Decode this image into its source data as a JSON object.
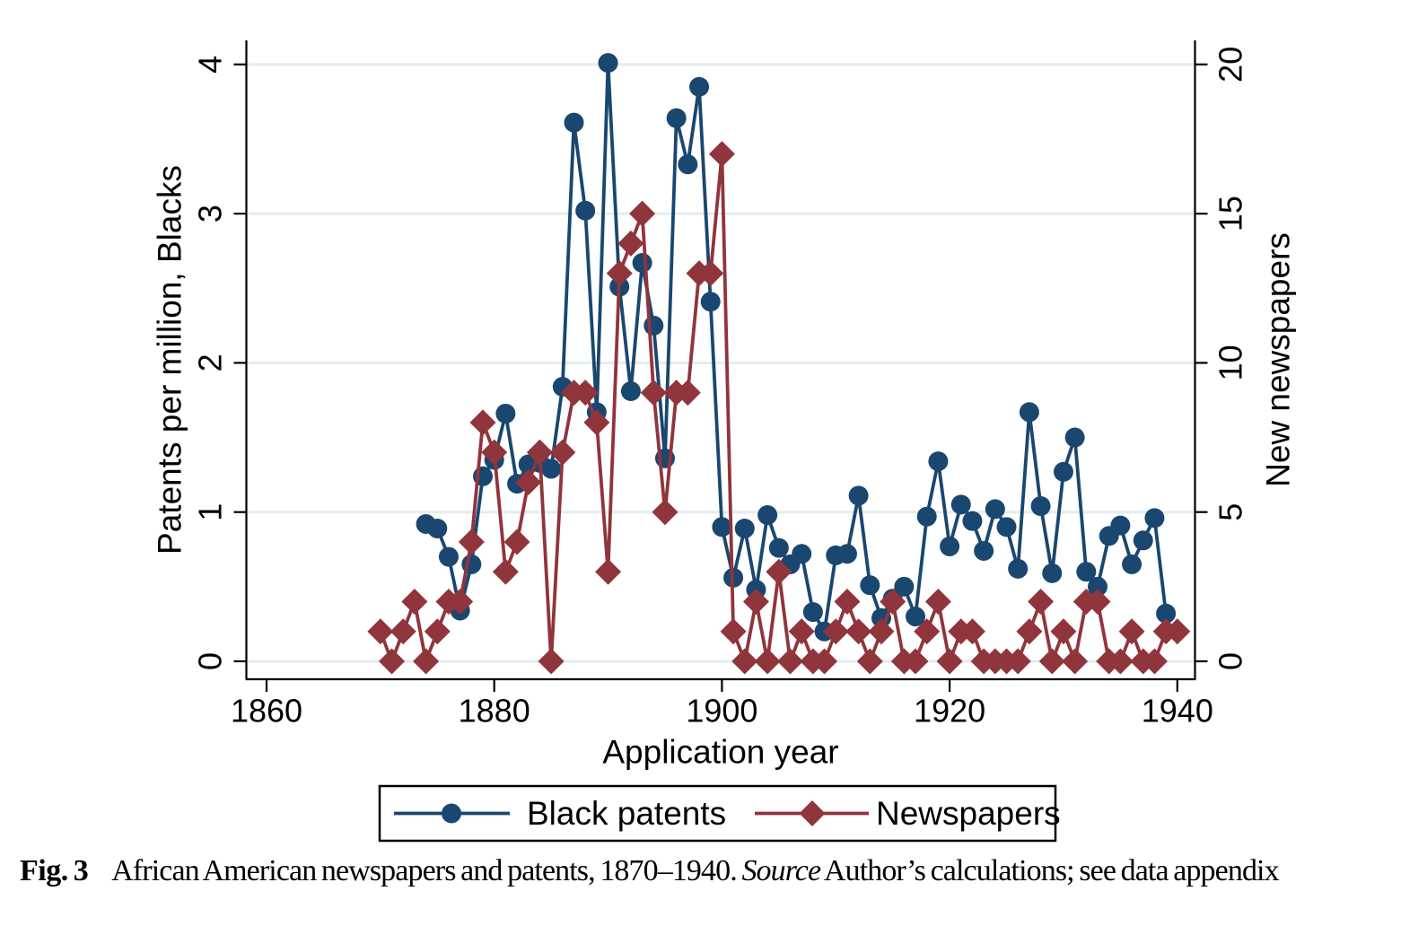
{
  "caption": {
    "fig_label": "Fig. 3",
    "title": "African American newspapers and patents, 1870–1940.",
    "source_label": "Source",
    "source_text": "Author’s calculations; see data appendix"
  },
  "colors": {
    "patents_line": "#1a476f",
    "newspapers_line": "#90353b",
    "gridline": "#e2edef",
    "axis": "#000000",
    "background": "#ffffff",
    "legend_border": "#000000"
  },
  "chart_data": {
    "type": "line",
    "title": "",
    "xlabel": "Application year",
    "ylabel_left": "Patents per million, Blacks",
    "ylabel_right": "New newspapers",
    "x_range": [
      1860,
      1940
    ],
    "x_ticks": [
      1860,
      1880,
      1900,
      1920,
      1940
    ],
    "y_left_range": [
      0,
      4
    ],
    "y_left_ticks": [
      0,
      1,
      2,
      3,
      4
    ],
    "y_right_range": [
      0,
      20
    ],
    "y_right_ticks": [
      0,
      5,
      10,
      15,
      20
    ],
    "grid": "horizontal",
    "legend_position": "bottom",
    "series": [
      {
        "name": "Black patents",
        "axis": "left",
        "marker": "circle",
        "color": "#1a476f",
        "x": [
          1874,
          1875,
          1876,
          1877,
          1878,
          1879,
          1880,
          1881,
          1882,
          1883,
          1884,
          1885,
          1886,
          1887,
          1888,
          1889,
          1890,
          1891,
          1892,
          1893,
          1894,
          1895,
          1896,
          1897,
          1898,
          1899,
          1900,
          1901,
          1902,
          1903,
          1904,
          1905,
          1906,
          1907,
          1908,
          1909,
          1910,
          1911,
          1912,
          1913,
          1914,
          1915,
          1916,
          1917,
          1918,
          1919,
          1920,
          1921,
          1922,
          1923,
          1924,
          1925,
          1926,
          1927,
          1928,
          1929,
          1930,
          1931,
          1932,
          1933,
          1934,
          1935,
          1936,
          1937,
          1938,
          1939
        ],
        "values": [
          0.92,
          0.89,
          0.7,
          0.34,
          0.65,
          1.24,
          1.35,
          1.66,
          1.19,
          1.32,
          1.33,
          1.29,
          1.84,
          3.61,
          3.02,
          1.67,
          4.01,
          2.51,
          1.81,
          2.67,
          2.25,
          1.36,
          3.64,
          3.33,
          3.85,
          2.41,
          0.9,
          0.56,
          0.89,
          0.48,
          0.98,
          0.76,
          0.65,
          0.72,
          0.33,
          0.2,
          0.71,
          0.72,
          1.11,
          0.51,
          0.29,
          0.42,
          0.5,
          0.3,
          0.97,
          1.34,
          0.77,
          1.05,
          0.94,
          0.74,
          1.02,
          0.9,
          0.62,
          1.67,
          1.04,
          0.59,
          1.27,
          1.5,
          0.6,
          0.5,
          0.84,
          0.91,
          0.65,
          0.81,
          0.96,
          0.32
        ]
      },
      {
        "name": "Newspapers",
        "axis": "right",
        "marker": "diamond",
        "color": "#90353b",
        "x": [
          1870,
          1871,
          1872,
          1873,
          1874,
          1875,
          1876,
          1877,
          1878,
          1879,
          1880,
          1881,
          1882,
          1883,
          1884,
          1885,
          1886,
          1887,
          1888,
          1889,
          1890,
          1891,
          1892,
          1893,
          1894,
          1895,
          1896,
          1897,
          1898,
          1899,
          1900,
          1901,
          1902,
          1903,
          1904,
          1905,
          1906,
          1907,
          1908,
          1909,
          1910,
          1911,
          1912,
          1913,
          1914,
          1915,
          1916,
          1917,
          1918,
          1919,
          1920,
          1921,
          1922,
          1923,
          1924,
          1925,
          1926,
          1927,
          1928,
          1929,
          1930,
          1931,
          1932,
          1933,
          1934,
          1935,
          1936,
          1937,
          1938,
          1939,
          1940
        ],
        "values": [
          1,
          0,
          1,
          2,
          0,
          1,
          2,
          2,
          4,
          8,
          7,
          3,
          4,
          6,
          7,
          0,
          7,
          9,
          9,
          8,
          3,
          13,
          14,
          15,
          9,
          5,
          9,
          9,
          13,
          13,
          17,
          1,
          0,
          2,
          0,
          3,
          0,
          1,
          0,
          0,
          1,
          2,
          1,
          0,
          1,
          2,
          0,
          0,
          1,
          2,
          0,
          1,
          1,
          0,
          0,
          0,
          0,
          1,
          2,
          0,
          1,
          0,
          2,
          2,
          0,
          0,
          1,
          0,
          0,
          1,
          1
        ]
      }
    ],
    "legend": {
      "items": [
        "Black patents",
        "Newspapers"
      ]
    }
  }
}
